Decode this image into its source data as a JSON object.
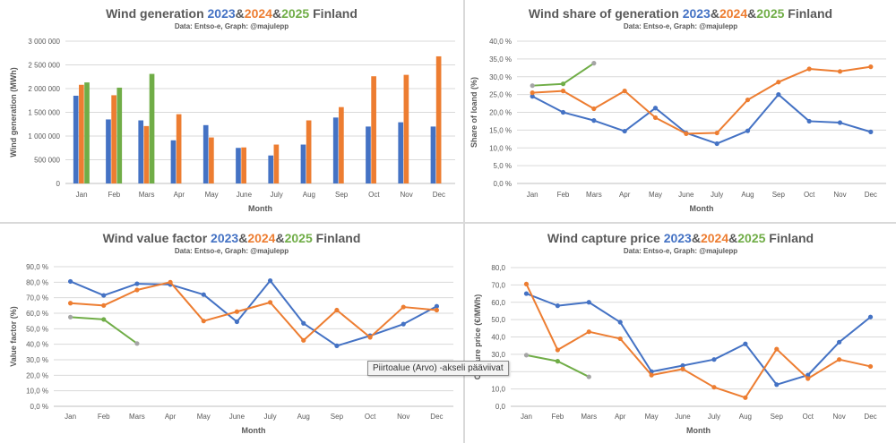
{
  "colors": {
    "y2023": "#4472c4",
    "y2024": "#ed7d31",
    "y2025": "#70ad47",
    "grey": "#a5a5a5",
    "title": "#595959",
    "axis": "#595959",
    "grid": "#d9d9d9"
  },
  "tooltip": "Piirtoalue  (Arvo)  -akseli pääviivat",
  "chart_data": [
    {
      "type": "bar",
      "title": {
        "prefix": "Wind generation ",
        "y1": "2023",
        "sep1": "&",
        "y2": "2024",
        "sep2": "&",
        "y3": "2025",
        "suffix": " Finland"
      },
      "subtitle": "Data: Entso-e, Graph: @majulepp",
      "xlabel": "Month",
      "ylabel": "Wind generation (MWh)",
      "ylim": [
        0,
        3000000
      ],
      "yticks": [
        "0",
        "500 000",
        "1 000 000",
        "1 500 000",
        "2 000 000",
        "2 500 000",
        "3 000 000"
      ],
      "categories": [
        "Jan",
        "Feb",
        "Mars",
        "Apr",
        "May",
        "June",
        "July",
        "Aug",
        "Sep",
        "Oct",
        "Nov",
        "Dec"
      ],
      "series": [
        {
          "name": "2023",
          "values": [
            1850000,
            1350000,
            1330000,
            910000,
            1230000,
            750000,
            590000,
            820000,
            1390000,
            1200000,
            1290000,
            1200000
          ]
        },
        {
          "name": "2024",
          "values": [
            2080000,
            1860000,
            1210000,
            1460000,
            970000,
            760000,
            820000,
            1330000,
            1610000,
            2260000,
            2290000,
            2680000
          ]
        },
        {
          "name": "2025",
          "values": [
            2130000,
            2020000,
            2310000,
            null,
            null,
            null,
            null,
            null,
            null,
            null,
            null,
            null
          ]
        }
      ]
    },
    {
      "type": "line",
      "title": {
        "prefix": "Wind share of generation ",
        "y1": "2023",
        "sep1": "&",
        "y2": "2024",
        "sep2": "&",
        "y3": "2025",
        "suffix": " Finland"
      },
      "subtitle": "Data: Entso-e, Graph: @majulepp",
      "xlabel": "Month",
      "ylabel": "Share of loand (%)",
      "ylim": [
        0,
        40
      ],
      "yticks": [
        "0,0 %",
        "5,0 %",
        "10,0 %",
        "15,0 %",
        "20,0 %",
        "25,0 %",
        "30,0 %",
        "35,0 %",
        "40,0 %"
      ],
      "categories": [
        "Jan",
        "Feb",
        "Mars",
        "Apr",
        "May",
        "June",
        "July",
        "Aug",
        "Sep",
        "Oct",
        "Nov",
        "Dec"
      ],
      "series": [
        {
          "name": "2023",
          "values": [
            24.5,
            20.0,
            17.7,
            14.7,
            21.2,
            14.2,
            11.2,
            14.8,
            25.0,
            17.5,
            17.1,
            14.5
          ]
        },
        {
          "name": "2024",
          "values": [
            25.5,
            26.0,
            21.0,
            26.0,
            18.5,
            14.0,
            14.2,
            23.5,
            28.5,
            32.2,
            31.5,
            32.8
          ]
        },
        {
          "name": "2025",
          "values": [
            27.5,
            28.0,
            33.8,
            null,
            null,
            null,
            null,
            null,
            null,
            null,
            null,
            null
          ]
        }
      ]
    },
    {
      "type": "line",
      "title": {
        "prefix": "Wind value factor ",
        "y1": "2023",
        "sep1": "&",
        "y2": "2024",
        "sep2": "&",
        "y3": "2025",
        "suffix": " Finland"
      },
      "subtitle": "Data: Entso-e, Graph: @majulepp",
      "xlabel": "Month",
      "ylabel": "Value factor (%)",
      "ylim": [
        0,
        90
      ],
      "yticks": [
        "0,0 %",
        "10,0 %",
        "20,0 %",
        "30,0 %",
        "40,0 %",
        "50,0 %",
        "60,0 %",
        "70,0 %",
        "80,0 %",
        "90,0 %"
      ],
      "categories": [
        "Jan",
        "Feb",
        "Mars",
        "Apr",
        "May",
        "June",
        "July",
        "Aug",
        "Sep",
        "Oct",
        "Nov",
        "Dec"
      ],
      "series": [
        {
          "name": "2023",
          "values": [
            80.5,
            71.5,
            79.0,
            78.5,
            72.0,
            54.5,
            81.0,
            53.5,
            39.0,
            45.5,
            53.0,
            64.5
          ]
        },
        {
          "name": "2024",
          "values": [
            66.5,
            65.0,
            75.0,
            80.0,
            55.0,
            61.0,
            67.0,
            42.5,
            62.0,
            44.5,
            64.0,
            62.0
          ]
        },
        {
          "name": "2025",
          "values": [
            57.5,
            56.0,
            40.5,
            null,
            null,
            null,
            null,
            null,
            null,
            null,
            null,
            null
          ]
        }
      ]
    },
    {
      "type": "line",
      "title": {
        "prefix": "Wind capture price ",
        "y1": "2023",
        "sep1": "&",
        "y2": "2024",
        "sep2": "&",
        "y3": "2025",
        "suffix": " Finland"
      },
      "subtitle": "Data: Entso-e, Graph: @majulepp",
      "xlabel": "Month",
      "ylabel": "Capture price (€/MWh)",
      "ylim": [
        0,
        80
      ],
      "yticks": [
        "0,0",
        "10,0",
        "20,0",
        "30,0",
        "40,0",
        "50,0",
        "60,0",
        "70,0",
        "80,0"
      ],
      "categories": [
        "Jan",
        "Feb",
        "Mars",
        "Apr",
        "May",
        "June",
        "July",
        "Aug",
        "Sep",
        "Oct",
        "Nov",
        "Dec"
      ],
      "series": [
        {
          "name": "2023",
          "values": [
            65.0,
            58.0,
            60.0,
            48.5,
            20.0,
            23.5,
            27.0,
            36.0,
            12.5,
            18.0,
            37.0,
            51.5
          ]
        },
        {
          "name": "2024",
          "values": [
            70.5,
            32.5,
            43.0,
            39.0,
            18.0,
            21.5,
            11.0,
            5.0,
            33.0,
            16.0,
            27.0,
            23.0
          ]
        },
        {
          "name": "2025",
          "values": [
            29.5,
            26.0,
            17.0,
            null,
            null,
            null,
            null,
            null,
            null,
            null,
            null,
            null
          ]
        }
      ]
    }
  ]
}
